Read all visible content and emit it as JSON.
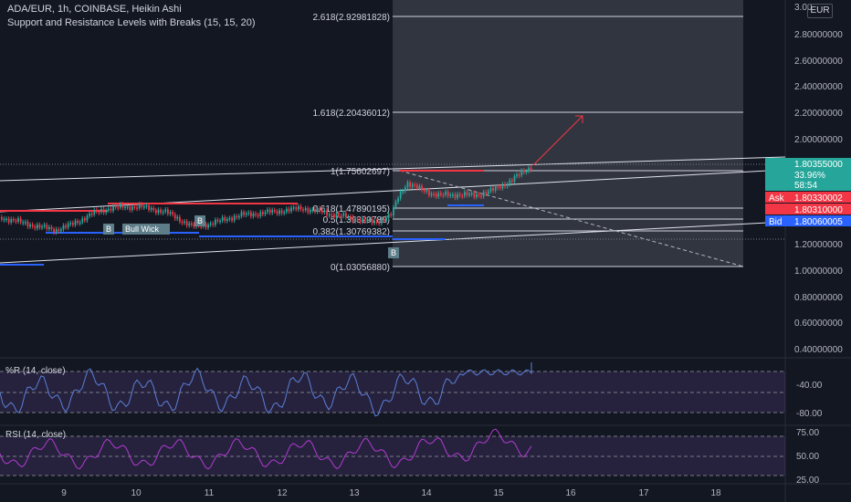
{
  "header": {
    "symbol_line": "ADA/EUR, 1h, COINBASE, Heikin Ashi",
    "indicator_line": "Support and Resistance Levels with Breaks (15, 15, 20)"
  },
  "currency_button": "EUR",
  "price_axis": {
    "top_partial": "3.00",
    "ticks": [
      "2.80000000",
      "2.60000000",
      "2.40000000",
      "2.20000000",
      "2.00000000",
      "1.80355000",
      "1.20000000",
      "1.00000000",
      "0.80000000",
      "0.60000000",
      "0.40000000"
    ]
  },
  "price_tag": {
    "price": "1.80355000",
    "percent": "33.96%",
    "countdown": "58:54",
    "color": "#26a69a"
  },
  "ask_tag": {
    "label": "Ask",
    "price": "1.80330002",
    "color": "#f23645"
  },
  "mid_tag": {
    "price": "1.80310000",
    "color": "#f23645"
  },
  "bid_tag": {
    "label": "Bid",
    "price": "1.80060005",
    "color": "#2962ff"
  },
  "fib_levels": [
    {
      "label": "2.618(2.92981828)"
    },
    {
      "label": "1.618(2.20436012)"
    },
    {
      "label": "1(1.75602697)"
    },
    {
      "label": "0.618(1.47890195)"
    },
    {
      "label": "0.5(1.39329789)"
    },
    {
      "label": "0.382(1.30769382)"
    },
    {
      "label": "0(1.03056880)"
    }
  ],
  "break_labels": [
    "B",
    "Bull Wick",
    "B",
    "B"
  ],
  "wr_panel": {
    "title": "%R (14, close)",
    "ticks": [
      "-40.00",
      "-80.00"
    ]
  },
  "rsi_panel": {
    "title": "RSI (14, close)",
    "ticks": [
      "75.00",
      "50.00",
      "25.00"
    ]
  },
  "time_axis": [
    "9",
    "10",
    "11",
    "12",
    "13",
    "14",
    "15",
    "16",
    "17",
    "18"
  ],
  "colors": {
    "bull": "#26a69a",
    "bear": "#f23645",
    "wr_line": "#5b7fd6",
    "rsi_line": "#b33ad1",
    "support": "#2962ff",
    "resistance": "#f23645"
  }
}
